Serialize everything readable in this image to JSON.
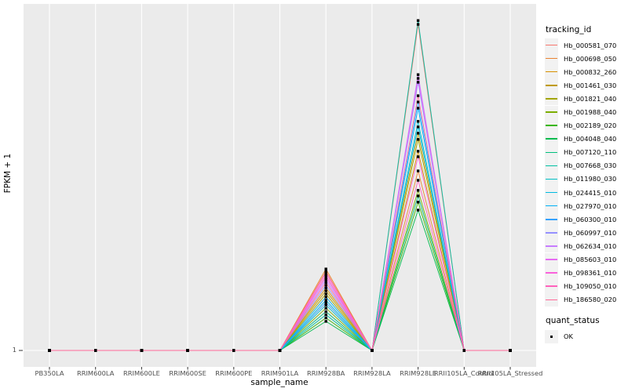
{
  "chart_data": {
    "type": "line",
    "title": "",
    "x_axis": {
      "title": "sample_name",
      "categories": [
        "PB350LA",
        "RRIM600LA",
        "RRIM600LE",
        "RRIM600SE",
        "RRIM600PE",
        "RRIM901LA",
        "RRIM928BA",
        "RRIM928LA",
        "RRIM928LE",
        "RRII105LA_Control",
        "RRII105LA_Stressed"
      ]
    },
    "y_axis": {
      "title": "FPKM + 1",
      "tick_labels": [
        "1"
      ],
      "note": "only the value 1 is labeled; peak magnitudes unlabeled"
    },
    "value_encoding": "values are height of point above the FPKM+1=1 baseline as a fraction of panel height (0 = 1 on axis, 1 = panel top); all samples sit at baseline except RRIM928BA and RRIM928LE peaks",
    "panel": {
      "background": "#EBEBEB",
      "gridline_color": "#FFFFFF"
    },
    "point_marker": {
      "shape": "square",
      "color": "#000000",
      "legend_meaning": "quant_status OK"
    },
    "series": [
      {
        "name": "Hb_000581_070",
        "color": "#F8766D",
        "values": [
          0,
          0,
          0,
          0,
          0,
          0,
          0.228,
          0,
          0.941,
          0,
          0
        ]
      },
      {
        "name": "Hb_000698_050",
        "color": "#EA8331",
        "values": [
          0,
          0,
          0,
          0,
          0,
          0,
          0.235,
          0,
          0.518,
          0,
          0
        ]
      },
      {
        "name": "Hb_000832_260",
        "color": "#D89000",
        "values": [
          0,
          0,
          0,
          0,
          0,
          0,
          0.18,
          0,
          0.575,
          0,
          0
        ]
      },
      {
        "name": "Hb_001461_030",
        "color": "#C09B00",
        "values": [
          0,
          0,
          0,
          0,
          0,
          0,
          0.172,
          0,
          0.627,
          0,
          0
        ]
      },
      {
        "name": "Hb_001821_040",
        "color": "#A3A500",
        "values": [
          0,
          0,
          0,
          0,
          0,
          0,
          0.163,
          0,
          0.609,
          0,
          0
        ]
      },
      {
        "name": "Hb_001988_040",
        "color": "#7CAE00",
        "values": [
          0,
          0,
          0,
          0,
          0,
          0,
          0.122,
          0,
          0.462,
          0,
          0
        ]
      },
      {
        "name": "Hb_002189_020",
        "color": "#39B600",
        "values": [
          0,
          0,
          0,
          0,
          0,
          0,
          0.094,
          0,
          0.428,
          0,
          0
        ]
      },
      {
        "name": "Hb_004048_040",
        "color": "#00BB4E",
        "values": [
          0,
          0,
          0,
          0,
          0,
          0,
          0.084,
          0,
          0.405,
          0,
          0
        ]
      },
      {
        "name": "Hb_007120_110",
        "color": "#00BF7D",
        "values": [
          0,
          0,
          0,
          0,
          0,
          0,
          0.112,
          0,
          0.446,
          0,
          0
        ]
      },
      {
        "name": "Hb_007668_030",
        "color": "#00C1A3",
        "values": [
          0,
          0,
          0,
          0,
          0,
          0,
          0.103,
          0,
          0.952,
          0,
          0
        ]
      },
      {
        "name": "Hb_011980_030",
        "color": "#00BFC4",
        "values": [
          0,
          0,
          0,
          0,
          0,
          0,
          0.131,
          0,
          0.661,
          0,
          0
        ]
      },
      {
        "name": "Hb_024415_010",
        "color": "#00BAE0",
        "values": [
          0,
          0,
          0,
          0,
          0,
          0,
          0.145,
          0,
          0.645,
          0,
          0
        ]
      },
      {
        "name": "Hb_027970_010",
        "color": "#00B0F6",
        "values": [
          0,
          0,
          0,
          0,
          0,
          0,
          0.154,
          0,
          0.699,
          0,
          0
        ]
      },
      {
        "name": "Hb_060300_010",
        "color": "#35A2FF",
        "values": [
          0,
          0,
          0,
          0,
          0,
          0,
          0.138,
          0,
          0.717,
          0,
          0
        ]
      },
      {
        "name": "Hb_060997_010",
        "color": "#9590FF",
        "values": [
          0,
          0,
          0,
          0,
          0,
          0,
          0.188,
          0,
          0.774,
          0,
          0
        ]
      },
      {
        "name": "Hb_062634_010",
        "color": "#C77CFF",
        "values": [
          0,
          0,
          0,
          0,
          0,
          0,
          0.203,
          0,
          0.796,
          0,
          0
        ]
      },
      {
        "name": "Hb_085603_010",
        "color": "#E76BF3",
        "values": [
          0,
          0,
          0,
          0,
          0,
          0,
          0.21,
          0,
          0.785,
          0,
          0
        ]
      },
      {
        "name": "Hb_098361_010",
        "color": "#FA62DB",
        "values": [
          0,
          0,
          0,
          0,
          0,
          0,
          0.223,
          0,
          0.559,
          0,
          0
        ]
      },
      {
        "name": "Hb_109050_010",
        "color": "#FF62BC",
        "values": [
          0,
          0,
          0,
          0,
          0,
          0,
          0.216,
          0,
          0.491,
          0,
          0
        ]
      },
      {
        "name": "Hb_186580_020",
        "color": "#FF6A98",
        "values": [
          0,
          0,
          0,
          0,
          0,
          0,
          0.196,
          0,
          0.735,
          0,
          0
        ]
      }
    ]
  },
  "legend": {
    "tracking_title": "tracking_id",
    "quant_title": "quant_status",
    "quant_items": [
      {
        "label": "OK",
        "marker": "black-square"
      }
    ]
  }
}
